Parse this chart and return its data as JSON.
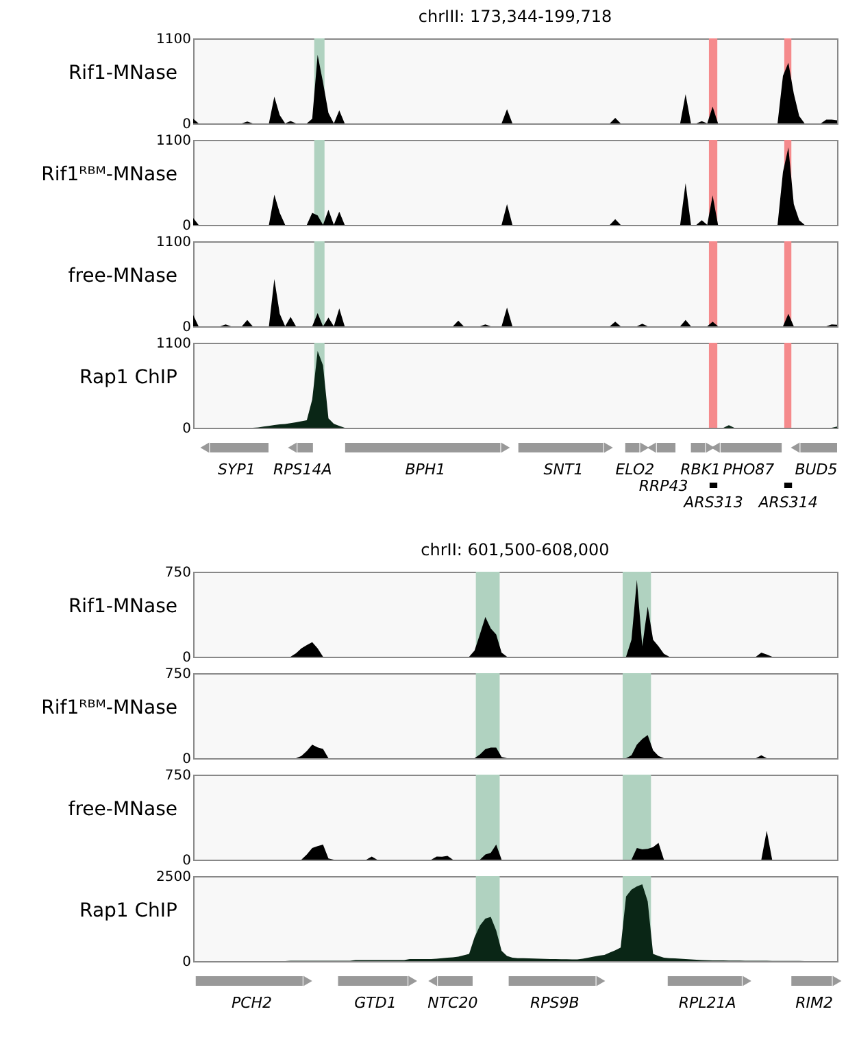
{
  "chart_data": [
    {
      "type": "area",
      "title": "chrIII: 173,344-199,718",
      "ylabel": "Rif1-MNase",
      "ylim": [
        0,
        1100
      ],
      "yticks": [
        0,
        1100
      ],
      "tick_labels": "y",
      "categories": [
        null,
        null,
        null,
        null,
        null,
        null,
        null,
        null,
        null,
        null,
        null,
        null,
        null,
        null,
        null,
        null,
        null,
        null,
        null,
        null,
        null,
        null,
        null,
        null,
        null,
        null,
        null,
        null,
        null,
        null,
        null,
        null,
        null,
        null,
        null,
        null,
        null,
        null,
        null,
        null,
        null,
        null,
        null,
        null,
        null,
        null,
        null,
        null,
        null,
        null,
        null,
        null,
        null,
        null,
        null,
        null,
        null,
        null,
        null,
        null,
        null,
        null,
        null,
        null,
        null,
        null,
        null,
        null,
        null,
        null,
        null,
        null,
        null,
        null,
        null,
        null,
        null,
        null,
        null,
        null,
        null,
        null,
        null,
        null,
        null,
        null,
        null,
        null,
        null,
        null,
        null,
        null,
        null,
        null,
        null,
        null,
        null,
        null,
        null,
        null,
        null,
        null,
        null,
        null,
        null,
        null,
        null,
        null,
        null,
        null,
        null,
        null,
        null,
        null,
        null,
        null,
        null,
        null,
        null,
        null
      ],
      "series": [
        {
          "color": "#000000",
          "values": [
            60,
            0,
            0,
            0,
            0,
            0,
            0,
            0,
            0,
            0,
            25,
            0,
            0,
            0,
            0,
            347,
            106,
            0,
            30,
            0,
            0,
            0,
            60,
            887,
            530,
            135,
            0,
            169,
            0,
            0,
            0,
            0,
            0,
            0,
            0,
            0,
            0,
            0,
            0,
            0,
            0,
            0,
            0,
            0,
            0,
            0,
            0,
            0,
            0,
            0,
            0,
            0,
            0,
            0,
            0,
            0,
            0,
            0,
            183,
            0,
            0,
            0,
            0,
            0,
            0,
            0,
            0,
            0,
            0,
            0,
            0,
            0,
            0,
            0,
            0,
            0,
            0,
            0,
            72,
            0,
            0,
            0,
            0,
            0,
            0,
            0,
            0,
            0,
            0,
            0,
            0,
            376,
            0,
            0,
            29,
            0,
            217,
            0,
            0,
            0,
            0,
            0,
            0,
            0,
            0,
            0,
            0,
            0,
            0,
            617,
            785,
            385,
            96,
            0,
            0,
            0,
            0,
            48,
            48,
            40
          ]
        }
      ]
    },
    {
      "type": "area",
      "ylabel": "Rif1ᴿᴮᴹ-MNase",
      "ylim": [
        0,
        1100
      ],
      "yticks": [
        0,
        1100
      ],
      "tick_labels": "y",
      "categories": [
        null,
        null,
        null,
        null,
        null,
        null,
        null,
        null,
        null,
        null,
        null,
        null,
        null,
        null,
        null,
        null,
        null,
        null,
        null,
        null,
        null,
        null,
        null,
        null,
        null,
        null,
        null,
        null,
        null,
        null,
        null,
        null,
        null,
        null,
        null,
        null,
        null,
        null,
        null,
        null,
        null,
        null,
        null,
        null,
        null,
        null,
        null,
        null,
        null,
        null,
        null,
        null,
        null,
        null,
        null,
        null,
        null,
        null,
        null,
        null,
        null,
        null,
        null,
        null,
        null,
        null,
        null,
        null,
        null,
        null,
        null,
        null,
        null,
        null,
        null,
        null,
        null,
        null,
        null,
        null,
        null,
        null,
        null,
        null,
        null,
        null,
        null,
        null,
        null,
        null,
        null,
        null,
        null,
        null,
        null,
        null,
        null,
        null,
        null,
        null,
        null,
        null,
        null,
        null,
        null,
        null,
        null,
        null,
        null,
        null,
        null,
        null,
        null,
        null,
        null,
        null,
        null,
        null,
        null,
        null
      ],
      "series": [
        {
          "color": "#000000",
          "values": [
            88,
            0,
            0,
            0,
            0,
            0,
            0,
            0,
            0,
            0,
            0,
            0,
            0,
            0,
            0,
            391,
            156,
            0,
            0,
            0,
            0,
            0,
            156,
            122,
            0,
            196,
            0,
            171,
            0,
            0,
            0,
            0,
            0,
            0,
            0,
            0,
            0,
            0,
            0,
            0,
            0,
            0,
            0,
            0,
            0,
            0,
            0,
            0,
            0,
            0,
            0,
            0,
            0,
            0,
            0,
            0,
            0,
            0,
            269,
            0,
            0,
            0,
            0,
            0,
            0,
            0,
            0,
            0,
            0,
            0,
            0,
            0,
            0,
            0,
            0,
            0,
            0,
            0,
            73,
            0,
            0,
            0,
            0,
            0,
            0,
            0,
            0,
            0,
            0,
            0,
            0,
            538,
            0,
            0,
            59,
            0,
            381,
            0,
            0,
            0,
            0,
            0,
            0,
            0,
            0,
            0,
            0,
            0,
            0,
            685,
            1003,
            269,
            60,
            0,
            0,
            0,
            0,
            0,
            0,
            0
          ]
        }
      ]
    },
    {
      "type": "area",
      "ylabel": "free-MNase",
      "ylim": [
        0,
        1100
      ],
      "yticks": [
        0,
        1100
      ],
      "tick_labels": "y",
      "categories": [
        null,
        null,
        null,
        null,
        null,
        null,
        null,
        null,
        null,
        null,
        null,
        null,
        null,
        null,
        null,
        null,
        null,
        null,
        null,
        null,
        null,
        null,
        null,
        null,
        null,
        null,
        null,
        null,
        null,
        null,
        null,
        null,
        null,
        null,
        null,
        null,
        null,
        null,
        null,
        null,
        null,
        null,
        null,
        null,
        null,
        null,
        null,
        null,
        null,
        null,
        null,
        null,
        null,
        null,
        null,
        null,
        null,
        null,
        null,
        null,
        null,
        null,
        null,
        null,
        null,
        null,
        null,
        null,
        null,
        null,
        null,
        null,
        null,
        null,
        null,
        null,
        null,
        null,
        null,
        null,
        null,
        null,
        null,
        null,
        null,
        null,
        null,
        null,
        null,
        null,
        null,
        null,
        null,
        null,
        null,
        null,
        null,
        null,
        null,
        null,
        null,
        null,
        null,
        null,
        null,
        null,
        null,
        null,
        null,
        null,
        null,
        null,
        null,
        null,
        null,
        null,
        null,
        null,
        null,
        null
      ],
      "series": [
        {
          "color": "#000000",
          "values": [
            147,
            0,
            0,
            0,
            0,
            0,
            24,
            0,
            0,
            0,
            83,
            0,
            0,
            0,
            0,
            611,
            161,
            0,
            122,
            0,
            0,
            0,
            0,
            171,
            0,
            112,
            0,
            230,
            0,
            0,
            0,
            0,
            0,
            0,
            0,
            0,
            0,
            0,
            0,
            0,
            0,
            0,
            0,
            0,
            0,
            0,
            0,
            0,
            0,
            73,
            0,
            0,
            0,
            0,
            24,
            0,
            0,
            0,
            245,
            0,
            0,
            0,
            0,
            0,
            0,
            0,
            0,
            0,
            0,
            0,
            0,
            0,
            0,
            0,
            0,
            0,
            0,
            0,
            59,
            0,
            0,
            0,
            0,
            34,
            0,
            0,
            0,
            0,
            0,
            0,
            0,
            83,
            0,
            0,
            0,
            0,
            59,
            0,
            0,
            0,
            0,
            0,
            0,
            0,
            0,
            0,
            0,
            0,
            0,
            0,
            161,
            0,
            0,
            0,
            0,
            0,
            0,
            0,
            24,
            20
          ]
        }
      ]
    },
    {
      "type": "area",
      "ylabel": "Rap1 ChIP",
      "ylim": [
        0,
        1100
      ],
      "yticks": [
        0,
        1100
      ],
      "tick_labels": "y",
      "categories": [
        null,
        null,
        null,
        null,
        null,
        null,
        null,
        null,
        null,
        null,
        null,
        null,
        null,
        null,
        null,
        null,
        null,
        null,
        null,
        null,
        null,
        null,
        null,
        null,
        null,
        null,
        null,
        null,
        null,
        null,
        null,
        null,
        null,
        null,
        null,
        null,
        null,
        null,
        null,
        null,
        null,
        null,
        null,
        null,
        null,
        null,
        null,
        null,
        null,
        null,
        null,
        null,
        null,
        null,
        null,
        null,
        null,
        null,
        null,
        null,
        null,
        null,
        null,
        null,
        null,
        null,
        null,
        null,
        null,
        null,
        null,
        null,
        null,
        null,
        null,
        null,
        null,
        null,
        null,
        null,
        null,
        null,
        null,
        null,
        null,
        null,
        null,
        null,
        null,
        null,
        null,
        null,
        null,
        null,
        null,
        null,
        null,
        null,
        null,
        null,
        null,
        null,
        null,
        null,
        null,
        null,
        null,
        null,
        null,
        null,
        null,
        null,
        null,
        null,
        null,
        null,
        null,
        null,
        null,
        null
      ],
      "series": [
        {
          "color": "#0a2616",
          "values": [
            0,
            0,
            0,
            0,
            0,
            0,
            0,
            0,
            0,
            0,
            0,
            0,
            5,
            15,
            25,
            35,
            45,
            49,
            60,
            72,
            85,
            98,
            367,
            993,
            807,
            122,
            50,
            24,
            0,
            0,
            0,
            0,
            0,
            0,
            0,
            0,
            0,
            0,
            0,
            0,
            0,
            0,
            0,
            0,
            0,
            0,
            0,
            0,
            0,
            0,
            0,
            0,
            0,
            0,
            0,
            0,
            0,
            0,
            0,
            0,
            0,
            0,
            0,
            0,
            0,
            0,
            0,
            0,
            0,
            0,
            0,
            0,
            0,
            0,
            0,
            0,
            0,
            0,
            0,
            0,
            0,
            0,
            0,
            0,
            0,
            0,
            0,
            0,
            0,
            0,
            0,
            0,
            0,
            0,
            0,
            0,
            0,
            0,
            0,
            34,
            0,
            0,
            0,
            0,
            0,
            0,
            0,
            0,
            0,
            0,
            0,
            0,
            0,
            0,
            0,
            0,
            0,
            0,
            0,
            15
          ]
        }
      ]
    },
    {
      "type": "other",
      "annotations": [
        "SYP1",
        "RPS14A",
        "BPH1",
        "SNT1",
        "ELO2",
        "RRP43",
        "RBK1",
        "ARS313",
        "PHO87",
        "ARS314",
        "BUD5"
      ]
    },
    {
      "type": "area",
      "title": "chrII: 601,500-608,000",
      "ylabel": "Rif1-MNase",
      "ylim": [
        0,
        750
      ],
      "yticks": [
        0,
        750
      ],
      "tick_labels": "y",
      "categories": [
        null,
        null,
        null,
        null,
        null,
        null,
        null,
        null,
        null,
        null,
        null,
        null,
        null,
        null,
        null,
        null,
        null,
        null,
        null,
        null,
        null,
        null,
        null,
        null,
        null,
        null,
        null,
        null,
        null,
        null,
        null,
        null,
        null,
        null,
        null,
        null,
        null,
        null,
        null,
        null,
        null,
        null,
        null,
        null,
        null,
        null,
        null,
        null,
        null,
        null,
        null,
        null,
        null,
        null,
        null,
        null,
        null,
        null,
        null,
        null,
        null,
        null,
        null,
        null,
        null,
        null,
        null,
        null,
        null,
        null,
        null,
        null,
        null,
        null,
        null,
        null,
        null,
        null,
        null,
        null,
        null,
        null,
        null,
        null,
        null,
        null,
        null,
        null,
        null,
        null,
        null,
        null,
        null,
        null,
        null,
        null,
        null,
        null,
        null,
        null,
        null,
        null,
        null,
        null,
        null,
        null,
        null,
        null,
        null,
        null,
        null,
        null,
        null,
        null,
        null,
        null,
        null,
        null,
        null,
        null
      ],
      "series": [
        {
          "color": "#000000",
          "values": [
            0,
            0,
            0,
            0,
            0,
            0,
            0,
            0,
            0,
            0,
            0,
            0,
            0,
            0,
            0,
            0,
            0,
            0,
            0,
            30,
            74,
            103,
            129,
            74,
            0,
            0,
            0,
            0,
            0,
            0,
            0,
            0,
            0,
            0,
            0,
            0,
            0,
            0,
            0,
            0,
            0,
            0,
            0,
            0,
            0,
            0,
            0,
            0,
            0,
            0,
            0,
            0,
            55,
            200,
            351,
            250,
            196,
            37,
            0,
            0,
            0,
            0,
            0,
            0,
            0,
            0,
            0,
            0,
            0,
            0,
            0,
            0,
            0,
            0,
            0,
            0,
            0,
            0,
            0,
            0,
            0,
            150,
            679,
            92,
            443,
            150,
            92,
            26,
            0,
            0,
            0,
            0,
            0,
            0,
            0,
            0,
            0,
            0,
            0,
            0,
            0,
            0,
            0,
            0,
            0,
            37,
            20,
            0,
            0,
            0,
            0,
            0,
            0,
            0,
            0,
            0,
            0,
            0,
            0,
            0
          ]
        }
      ]
    },
    {
      "type": "area",
      "ylabel": "Rif1ᴿᴮᴹ-MNase",
      "ylim": [
        0,
        750
      ],
      "yticks": [
        0,
        750
      ],
      "tick_labels": "y",
      "categories": [
        null,
        null,
        null,
        null,
        null,
        null,
        null,
        null,
        null,
        null,
        null,
        null,
        null,
        null,
        null,
        null,
        null,
        null,
        null,
        null,
        null,
        null,
        null,
        null,
        null,
        null,
        null,
        null,
        null,
        null,
        null,
        null,
        null,
        null,
        null,
        null,
        null,
        null,
        null,
        null,
        null,
        null,
        null,
        null,
        null,
        null,
        null,
        null,
        null,
        null,
        null,
        null,
        null,
        null,
        null,
        null,
        null,
        null,
        null,
        null,
        null,
        null,
        null,
        null,
        null,
        null,
        null,
        null,
        null,
        null,
        null,
        null,
        null,
        null,
        null,
        null,
        null,
        null,
        null,
        null,
        null,
        null,
        null,
        null,
        null,
        null,
        null,
        null,
        null,
        null,
        null,
        null,
        null,
        null,
        null,
        null,
        null,
        null,
        null,
        null,
        null,
        null,
        null,
        null,
        null,
        null,
        null,
        null,
        null,
        null,
        null,
        null,
        null,
        null,
        null,
        null,
        null,
        null,
        null,
        null
      ],
      "series": [
        {
          "color": "#000000",
          "values": [
            0,
            0,
            0,
            0,
            0,
            0,
            0,
            0,
            0,
            0,
            0,
            0,
            0,
            0,
            0,
            0,
            0,
            0,
            0,
            0,
            20,
            63,
            119,
            95,
            82,
            0,
            0,
            0,
            0,
            0,
            0,
            0,
            0,
            0,
            0,
            0,
            0,
            0,
            0,
            0,
            0,
            0,
            0,
            0,
            0,
            0,
            0,
            0,
            0,
            0,
            0,
            0,
            0,
            33,
            80,
            93,
            93,
            10,
            0,
            0,
            0,
            0,
            0,
            0,
            0,
            0,
            0,
            0,
            0,
            0,
            0,
            0,
            0,
            0,
            0,
            0,
            0,
            0,
            0,
            0,
            0,
            26,
            119,
            170,
            204,
            70,
            20,
            0,
            0,
            0,
            0,
            0,
            0,
            0,
            0,
            0,
            0,
            0,
            0,
            0,
            0,
            0,
            0,
            0,
            0,
            26,
            0,
            0,
            0,
            0,
            0,
            0,
            0,
            0,
            0,
            0,
            0,
            0,
            0,
            0
          ]
        }
      ]
    },
    {
      "type": "area",
      "ylabel": "free-MNase",
      "ylim": [
        0,
        750
      ],
      "yticks": [
        0,
        750
      ],
      "tick_labels": "y",
      "categories": [
        null,
        null,
        null,
        null,
        null,
        null,
        null,
        null,
        null,
        null,
        null,
        null,
        null,
        null,
        null,
        null,
        null,
        null,
        null,
        null,
        null,
        null,
        null,
        null,
        null,
        null,
        null,
        null,
        null,
        null,
        null,
        null,
        null,
        null,
        null,
        null,
        null,
        null,
        null,
        null,
        null,
        null,
        null,
        null,
        null,
        null,
        null,
        null,
        null,
        null,
        null,
        null,
        null,
        null,
        null,
        null,
        null,
        null,
        null,
        null,
        null,
        null,
        null,
        null,
        null,
        null,
        null,
        null,
        null,
        null,
        null,
        null,
        null,
        null,
        null,
        null,
        null,
        null,
        null,
        null,
        null,
        null,
        null,
        null,
        null,
        null,
        null,
        null,
        null,
        null,
        null,
        null,
        null,
        null,
        null,
        null,
        null,
        null,
        null,
        null,
        null,
        null,
        null,
        null,
        null,
        null,
        null,
        null,
        null,
        null,
        null,
        null,
        null,
        null,
        null,
        null,
        null,
        null,
        null,
        null
      ],
      "series": [
        {
          "color": "#000000",
          "values": [
            0,
            0,
            0,
            0,
            0,
            0,
            0,
            0,
            0,
            0,
            0,
            0,
            0,
            0,
            0,
            0,
            0,
            0,
            0,
            0,
            0,
            46,
            103,
            120,
            133,
            10,
            0,
            0,
            0,
            0,
            0,
            0,
            0,
            27,
            0,
            0,
            0,
            0,
            0,
            0,
            0,
            0,
            0,
            0,
            0,
            27,
            25,
            34,
            0,
            0,
            0,
            0,
            0,
            0,
            46,
            60,
            133,
            0,
            0,
            0,
            0,
            0,
            0,
            0,
            0,
            0,
            0,
            0,
            0,
            0,
            0,
            0,
            0,
            0,
            0,
            0,
            0,
            0,
            0,
            0,
            0,
            0,
            103,
            90,
            95,
            110,
            148,
            0,
            0,
            0,
            0,
            0,
            0,
            0,
            0,
            0,
            0,
            0,
            0,
            0,
            0,
            0,
            0,
            0,
            0,
            0,
            255,
            0,
            0,
            0,
            0,
            0,
            0,
            0,
            0,
            0,
            0,
            0,
            0,
            0
          ]
        }
      ]
    },
    {
      "type": "area",
      "ylabel": "Rap1 ChIP",
      "ylim": [
        0,
        2500
      ],
      "yticks": [
        0,
        2500
      ],
      "tick_labels": "y",
      "categories": [
        null,
        null,
        null,
        null,
        null,
        null,
        null,
        null,
        null,
        null,
        null,
        null,
        null,
        null,
        null,
        null,
        null,
        null,
        null,
        null,
        null,
        null,
        null,
        null,
        null,
        null,
        null,
        null,
        null,
        null,
        null,
        null,
        null,
        null,
        null,
        null,
        null,
        null,
        null,
        null,
        null,
        null,
        null,
        null,
        null,
        null,
        null,
        null,
        null,
        null,
        null,
        null,
        null,
        null,
        null,
        null,
        null,
        null,
        null,
        null,
        null,
        null,
        null,
        null,
        null,
        null,
        null,
        null,
        null,
        null,
        null,
        null,
        null,
        null,
        null,
        null,
        null,
        null,
        null,
        null,
        null,
        null,
        null,
        null,
        null,
        null,
        null,
        null,
        null,
        null,
        null,
        null,
        null,
        null,
        null,
        null,
        null,
        null,
        null,
        null,
        null,
        null,
        null,
        null,
        null,
        null,
        null,
        null,
        null,
        null,
        null,
        null,
        null,
        null,
        null,
        null,
        null,
        null,
        null,
        null
      ],
      "series": [
        {
          "color": "#0a2616",
          "values": [
            0,
            0,
            0,
            0,
            0,
            0,
            0,
            0,
            0,
            0,
            0,
            0,
            0,
            0,
            0,
            0,
            0,
            0,
            10,
            10,
            10,
            10,
            10,
            10,
            10,
            10,
            10,
            10,
            10,
            10,
            30,
            30,
            30,
            30,
            30,
            30,
            30,
            30,
            30,
            30,
            60,
            60,
            60,
            60,
            60,
            70,
            87,
            100,
            110,
            130,
            170,
            211,
            700,
            1050,
            1250,
            1302,
            900,
            300,
            150,
            100,
            87,
            85,
            80,
            75,
            70,
            65,
            60,
            58,
            56,
            55,
            52,
            50,
            70,
            100,
            130,
            160,
            180,
            250,
            320,
            397,
            1900,
            2100,
            2200,
            2257,
            1761,
            211,
            150,
            100,
            87,
            80,
            70,
            60,
            50,
            40,
            30,
            25,
            20,
            20,
            20,
            15,
            15,
            15,
            10,
            10,
            10,
            10,
            10,
            5,
            5,
            5,
            3,
            3,
            3,
            0,
            0,
            0,
            0,
            0,
            0,
            0
          ]
        }
      ]
    },
    {
      "type": "other",
      "annotations": [
        "PCH2",
        "GTD1",
        "NTC20",
        "RPS9B",
        "RPL21A",
        "RIM2"
      ]
    }
  ]
}
